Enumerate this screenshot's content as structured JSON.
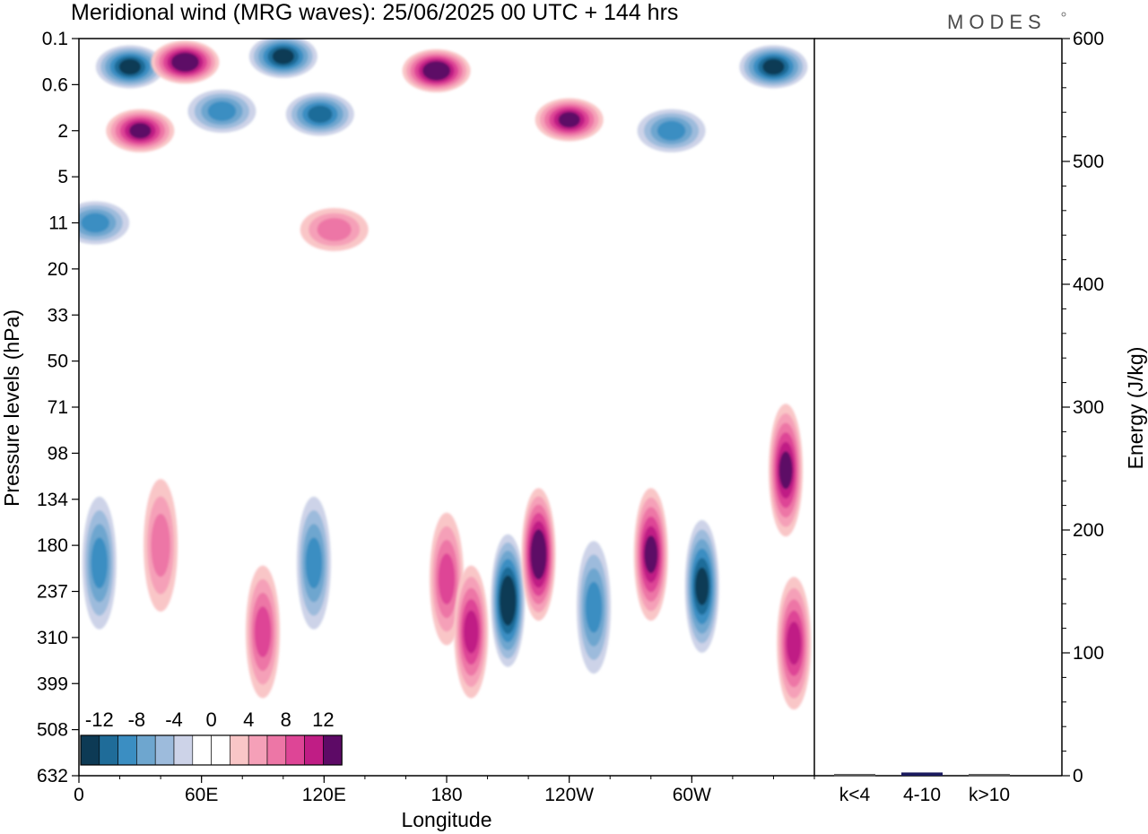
{
  "title": "Meridional wind (MRG waves):  25/06/2025  00 UTC  + 144 hrs",
  "logo": "MODES",
  "chart_data": [
    {
      "type": "heatmap",
      "title": "Meridional wind (MRG waves):  25/06/2025  00 UTC  + 144 hrs",
      "xlabel": "Longitude",
      "ylabel": "Pressure levels (hPa)",
      "x_ticks": [
        "0",
        "60E",
        "120E",
        "180",
        "120W",
        "60W"
      ],
      "x_tick_values": [
        0,
        60,
        120,
        180,
        240,
        300
      ],
      "xlim": [
        0,
        360
      ],
      "y_ticks": [
        "0.1",
        "0.6",
        "2",
        "5",
        "11",
        "20",
        "33",
        "50",
        "71",
        "98",
        "134",
        "180",
        "237",
        "310",
        "399",
        "508",
        "632"
      ],
      "y_scale": "log (reversed, top = 0.1 hPa)",
      "colorbar": {
        "tick_labels": [
          "-12",
          "-8",
          "-4",
          "0",
          "4",
          "8",
          "12"
        ],
        "levels": [
          -14,
          -12,
          -10,
          -8,
          -6,
          -4,
          -2,
          0,
          2,
          4,
          6,
          8,
          10,
          12,
          14
        ],
        "colors": [
          "#0d3a55",
          "#1f6c99",
          "#3b8ec2",
          "#6ea6cf",
          "#9dbbdc",
          "#cdd3e8",
          "#ffffff",
          "#ffffff",
          "#f9c6c7",
          "#f5a0b8",
          "#ed76a6",
          "#de4596",
          "#c01d85",
          "#5d0a66"
        ]
      },
      "features": [
        {
          "lon": 25,
          "p": 0.3,
          "value": -12
        },
        {
          "lon": 52,
          "p": 0.25,
          "value": 14
        },
        {
          "lon": 30,
          "p": 2,
          "value": 12
        },
        {
          "lon": 70,
          "p": 1.2,
          "value": -8
        },
        {
          "lon": 100,
          "p": 0.2,
          "value": -12
        },
        {
          "lon": 118,
          "p": 1.3,
          "value": -10
        },
        {
          "lon": 175,
          "p": 0.35,
          "value": 14
        },
        {
          "lon": 240,
          "p": 1.5,
          "value": 12
        },
        {
          "lon": 290,
          "p": 2,
          "value": -8
        },
        {
          "lon": 340,
          "p": 0.3,
          "value": -12
        },
        {
          "lon": 8,
          "p": 11,
          "value": -8
        },
        {
          "lon": 125,
          "p": 12,
          "value": 6
        },
        {
          "lon": 10,
          "p": 200,
          "value": -8
        },
        {
          "lon": 40,
          "p": 180,
          "value": 6
        },
        {
          "lon": 90,
          "p": 300,
          "value": 8
        },
        {
          "lon": 115,
          "p": 200,
          "value": -8
        },
        {
          "lon": 180,
          "p": 220,
          "value": 8
        },
        {
          "lon": 192,
          "p": 300,
          "value": 10
        },
        {
          "lon": 210,
          "p": 250,
          "value": -14
        },
        {
          "lon": 225,
          "p": 190,
          "value": 14
        },
        {
          "lon": 252,
          "p": 260,
          "value": -8
        },
        {
          "lon": 280,
          "p": 190,
          "value": 12
        },
        {
          "lon": 305,
          "p": 230,
          "value": -12
        },
        {
          "lon": 346,
          "p": 110,
          "value": 12
        },
        {
          "lon": 350,
          "p": 320,
          "value": 10
        }
      ]
    },
    {
      "type": "bar",
      "categories": [
        "k<4",
        "4-10",
        "k>10"
      ],
      "values": [
        0.3,
        1.5,
        0.3
      ],
      "ylabel": "Energy (J/kg)",
      "ylim": [
        0,
        600
      ],
      "y_ticks": [
        0,
        100,
        200,
        300,
        400,
        500,
        600
      ],
      "colors": [
        "#555555",
        "#1a1a5e",
        "#555555"
      ]
    }
  ]
}
